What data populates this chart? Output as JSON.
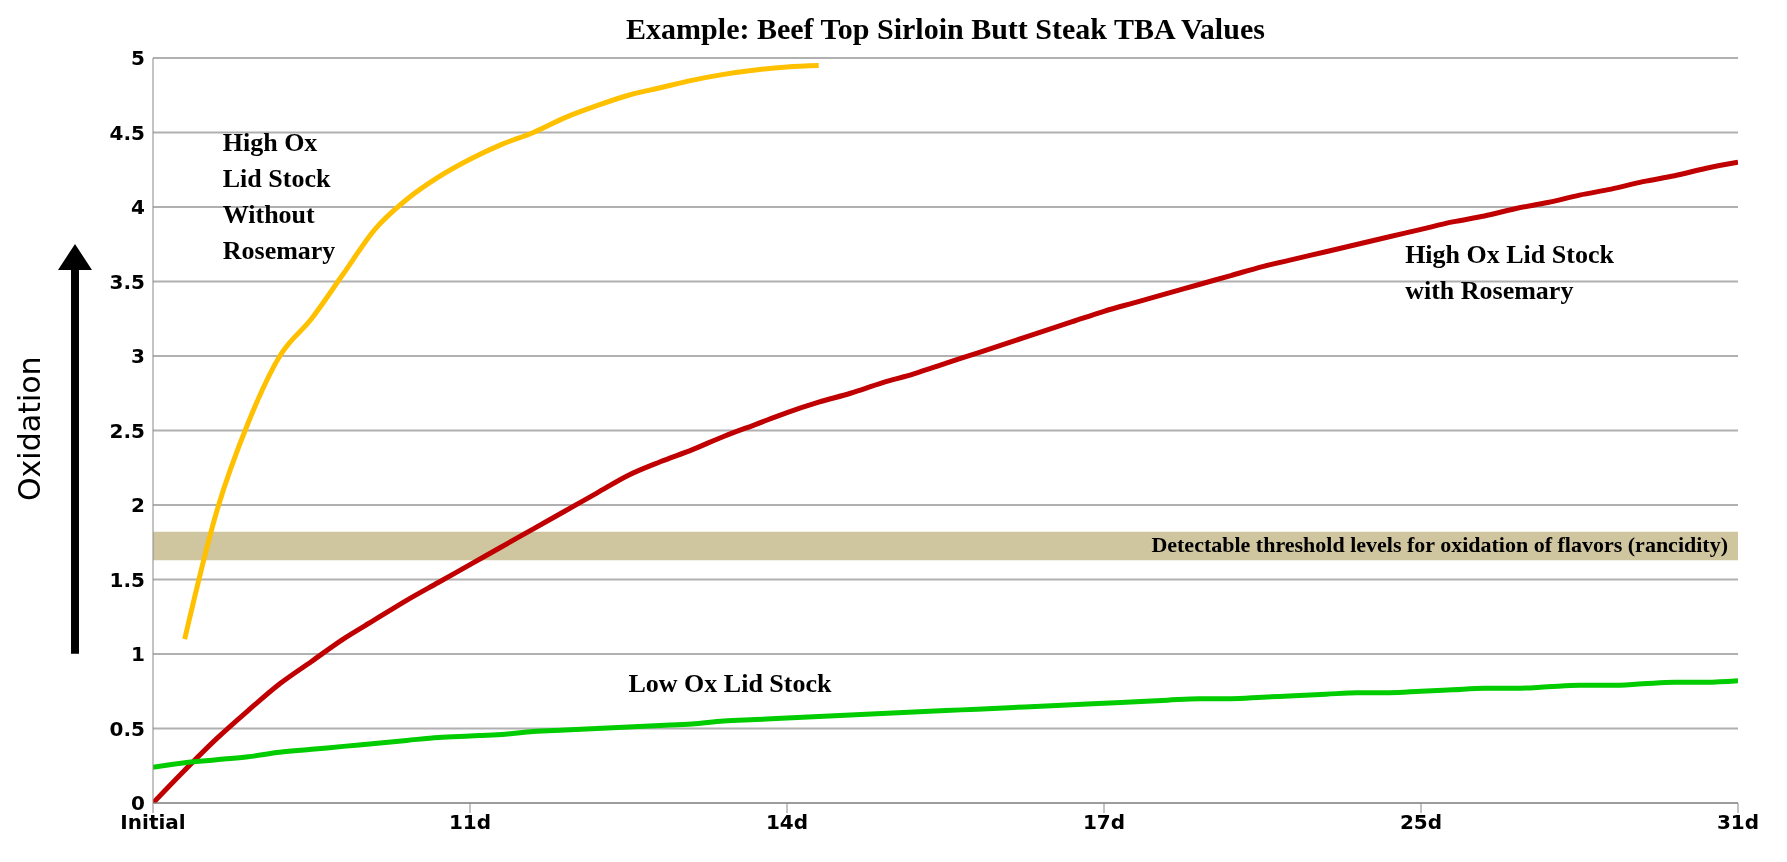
{
  "chart_data": {
    "type": "line",
    "title": "Example: Beef Top Sirloin Butt Steak TBA Values",
    "ylabel": "Oxidation",
    "categories": [
      "Initial",
      null,
      null,
      null,
      null,
      null,
      null,
      null,
      null,
      null,
      "11d",
      null,
      null,
      null,
      null,
      null,
      null,
      null,
      null,
      null,
      "14d",
      null,
      null,
      null,
      null,
      null,
      null,
      null,
      null,
      null,
      "17d",
      null,
      null,
      null,
      null,
      null,
      null,
      null,
      null,
      null,
      "25d",
      null,
      null,
      null,
      null,
      null,
      null,
      null,
      null,
      null,
      "31d"
    ],
    "ylim": [
      0,
      5
    ],
    "yticks": [
      0,
      0.5,
      1,
      1.5,
      2,
      2.5,
      3,
      3.5,
      4,
      4.5,
      5
    ],
    "grid": "y",
    "legend": false,
    "marker": "none",
    "line_style": "solid",
    "series": [
      {
        "name": "High Ox Lid Stock Without Rosemary",
        "color": "#ffc000",
        "values": [
          null,
          1.1,
          1.95,
          2.55,
          3.0,
          3.25,
          3.55,
          3.85,
          4.05,
          4.2,
          4.32,
          4.42,
          4.5,
          4.6,
          4.68,
          4.75,
          4.8,
          4.85,
          4.89,
          4.92,
          4.94,
          4.95,
          null,
          null,
          null,
          null,
          null,
          null,
          null,
          null,
          null,
          null,
          null,
          null,
          null,
          null,
          null,
          null,
          null,
          null,
          null,
          null,
          null,
          null,
          null,
          null,
          null,
          null,
          null,
          null,
          null
        ]
      },
      {
        "name": "High Ox Lid Stock with Rosemary",
        "color": "#c00000",
        "values": [
          0,
          0.22,
          0.43,
          0.62,
          0.8,
          0.95,
          1.1,
          1.23,
          1.36,
          1.48,
          1.6,
          1.72,
          1.84,
          1.96,
          2.08,
          2.2,
          2.29,
          2.37,
          2.46,
          2.54,
          2.62,
          2.69,
          2.75,
          2.82,
          2.88,
          2.95,
          3.02,
          3.09,
          3.16,
          3.23,
          3.3,
          3.36,
          3.42,
          3.48,
          3.54,
          3.6,
          3.65,
          3.7,
          3.75,
          3.8,
          3.85,
          3.9,
          3.94,
          3.99,
          4.03,
          4.08,
          4.12,
          4.17,
          4.21,
          4.26,
          4.3
        ]
      },
      {
        "name": "Low Ox Lid Stock",
        "color": "#00cc00",
        "values": [
          0.24,
          0.27,
          0.29,
          0.31,
          0.34,
          0.36,
          0.38,
          0.4,
          0.42,
          0.44,
          0.45,
          0.46,
          0.48,
          0.49,
          0.5,
          0.51,
          0.52,
          0.53,
          0.55,
          0.56,
          0.57,
          0.58,
          0.59,
          0.6,
          0.61,
          0.62,
          0.63,
          0.64,
          0.65,
          0.66,
          0.67,
          0.68,
          0.69,
          0.7,
          0.7,
          0.71,
          0.72,
          0.73,
          0.74,
          0.74,
          0.75,
          0.76,
          0.77,
          0.77,
          0.78,
          0.79,
          0.79,
          0.8,
          0.81,
          0.81,
          0.82
        ]
      }
    ],
    "bands": [
      {
        "axis": "y",
        "from": 1.63,
        "to": 1.82,
        "label": "Detectable threshold levels for oxidation of flavors (rancidity)",
        "color": "#cfc59e"
      }
    ]
  }
}
